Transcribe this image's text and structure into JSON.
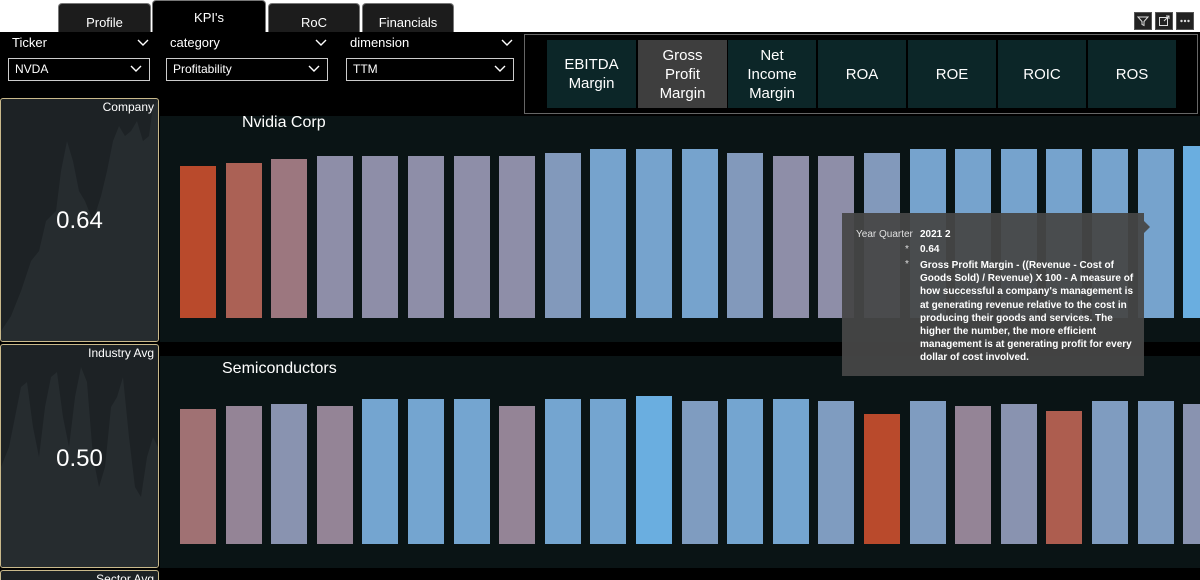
{
  "tabs": [
    {
      "label": "Profile",
      "active": false
    },
    {
      "label": "KPI's",
      "active": true
    },
    {
      "label": "RoC",
      "active": false
    },
    {
      "label": "Financials",
      "active": false
    }
  ],
  "corner_icons": [
    "filter-icon",
    "expand-icon",
    "more-options-icon"
  ],
  "slicers": [
    {
      "label": "Ticker",
      "value": "NVDA"
    },
    {
      "label": "category",
      "value": "Profitability"
    },
    {
      "label": "dimension",
      "value": "TTM"
    }
  ],
  "kpi_buttons": [
    {
      "label": "EBITDA\nMargin",
      "selected": false
    },
    {
      "label": "Gross\nProfit\nMargin",
      "selected": true
    },
    {
      "label": "Net\nIncome\nMargin",
      "selected": false
    },
    {
      "label": "ROA",
      "selected": false
    },
    {
      "label": "ROE",
      "selected": false
    },
    {
      "label": "ROIC",
      "selected": false
    },
    {
      "label": "ROS",
      "selected": false
    }
  ],
  "cards": [
    {
      "label": "Company",
      "value": "0.64"
    },
    {
      "label": "Industry Avg",
      "value": "0.50"
    },
    {
      "label": "Sector Avg",
      "value": ""
    }
  ],
  "charts": [
    {
      "title": "Nvidia Corp",
      "values": [
        0.59,
        0.6,
        0.61,
        0.62,
        0.62,
        0.62,
        0.62,
        0.62,
        0.63,
        0.64,
        0.64,
        0.64,
        0.63,
        0.62,
        0.62,
        0.63,
        0.64,
        0.64,
        0.64,
        0.64,
        0.64,
        0.64,
        0.65
      ]
    },
    {
      "title": "Semiconductors",
      "values": [
        0.46,
        0.47,
        0.48,
        0.47,
        0.5,
        0.5,
        0.5,
        0.47,
        0.5,
        0.5,
        0.51,
        0.49,
        0.5,
        0.5,
        0.49,
        0.44,
        0.49,
        0.47,
        0.48,
        0.45,
        0.49,
        0.49,
        0.48
      ]
    }
  ],
  "colors": {
    "low": "#b94a2c",
    "mid": "#8e8ea8",
    "high": "#6aaee0",
    "card_border": "#c9b98b",
    "kpi_bg": "#0c2628",
    "kpi_selected_bg": "#3e3e3e"
  },
  "tooltip": {
    "label": "Year Quarter",
    "quarter": "2021 2",
    "value": "0.64",
    "description": "Gross Profit Margin - ((Revenue - Cost of Goods Sold) / Revenue) X 100 - A measure of how successful a company's management is at generating revenue relative to the cost in producing their goods and services. The higher the number, the more efficient management is at generating profit for every dollar of cost involved."
  }
}
